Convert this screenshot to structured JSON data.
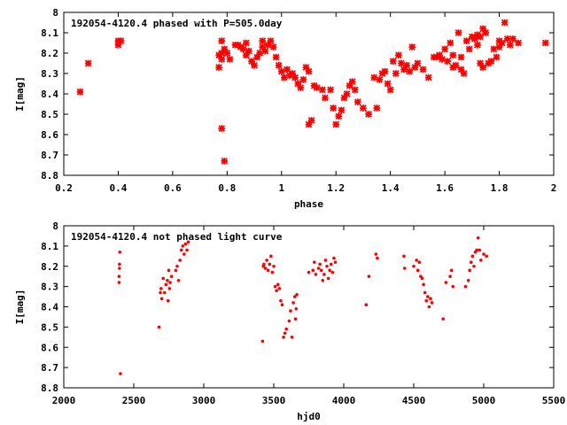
{
  "chart_data": [
    {
      "type": "scatter",
      "title": "192054-4120.4 phased with P=505.0day",
      "xlabel": "phase",
      "ylabel": "I[mag]",
      "xlim": [
        0.2,
        2.0
      ],
      "ylim": [
        8.8,
        8.0
      ],
      "y_inverted": true,
      "grid": false,
      "x_ticks": [
        "0.2",
        "0.4",
        "0.6",
        "0.8",
        "1",
        "1.2",
        "1.4",
        "1.6",
        "1.8",
        "2"
      ],
      "y_ticks": [
        "8",
        "8.1",
        "8.2",
        "8.3",
        "8.4",
        "8.5",
        "8.6",
        "8.7",
        "8.8"
      ],
      "marker_color": "#ff0000",
      "points": [
        [
          0.26,
          8.39
        ],
        [
          0.29,
          8.25
        ],
        [
          0.4,
          8.14
        ],
        [
          0.41,
          8.14
        ],
        [
          0.4,
          8.16
        ],
        [
          0.77,
          8.21
        ],
        [
          0.77,
          8.27
        ],
        [
          0.78,
          8.2
        ],
        [
          0.78,
          8.14
        ],
        [
          0.78,
          8.57
        ],
        [
          0.79,
          8.73
        ],
        [
          0.78,
          8.23
        ],
        [
          0.79,
          8.18
        ],
        [
          0.8,
          8.2
        ],
        [
          0.81,
          8.23
        ],
        [
          0.83,
          8.16
        ],
        [
          0.84,
          8.16
        ],
        [
          0.85,
          8.17
        ],
        [
          0.86,
          8.18
        ],
        [
          0.87,
          8.15
        ],
        [
          0.87,
          8.21
        ],
        [
          0.88,
          8.19
        ],
        [
          0.89,
          8.24
        ],
        [
          0.9,
          8.26
        ],
        [
          0.91,
          8.22
        ],
        [
          0.92,
          8.2
        ],
        [
          0.93,
          8.17
        ],
        [
          0.93,
          8.14
        ],
        [
          0.94,
          8.19
        ],
        [
          0.95,
          8.16
        ],
        [
          0.96,
          8.14
        ],
        [
          0.97,
          8.17
        ],
        [
          0.98,
          8.22
        ],
        [
          0.99,
          8.26
        ],
        [
          1.0,
          8.29
        ],
        [
          1.01,
          8.32
        ],
        [
          1.02,
          8.28
        ],
        [
          1.03,
          8.31
        ],
        [
          1.04,
          8.3
        ],
        [
          1.05,
          8.32
        ],
        [
          1.06,
          8.35
        ],
        [
          1.07,
          8.37
        ],
        [
          1.08,
          8.33
        ],
        [
          1.09,
          8.27
        ],
        [
          1.1,
          8.29
        ],
        [
          1.1,
          8.55
        ],
        [
          1.11,
          8.53
        ],
        [
          1.12,
          8.36
        ],
        [
          1.13,
          8.37
        ],
        [
          1.15,
          8.38
        ],
        [
          1.16,
          8.42
        ],
        [
          1.18,
          8.38
        ],
        [
          1.19,
          8.47
        ],
        [
          1.2,
          8.55
        ],
        [
          1.21,
          8.51
        ],
        [
          1.22,
          8.48
        ],
        [
          1.23,
          8.42
        ],
        [
          1.24,
          8.4
        ],
        [
          1.25,
          8.36
        ],
        [
          1.26,
          8.34
        ],
        [
          1.27,
          8.38
        ],
        [
          1.28,
          8.44
        ],
        [
          1.3,
          8.47
        ],
        [
          1.32,
          8.5
        ],
        [
          1.34,
          8.32
        ],
        [
          1.35,
          8.47
        ],
        [
          1.36,
          8.33
        ],
        [
          1.37,
          8.3
        ],
        [
          1.38,
          8.29
        ],
        [
          1.39,
          8.35
        ],
        [
          1.4,
          8.38
        ],
        [
          1.41,
          8.24
        ],
        [
          1.42,
          8.3
        ],
        [
          1.43,
          8.21
        ],
        [
          1.44,
          8.25
        ],
        [
          1.45,
          8.28
        ],
        [
          1.46,
          8.26
        ],
        [
          1.47,
          8.29
        ],
        [
          1.48,
          8.17
        ],
        [
          1.49,
          8.27
        ],
        [
          1.5,
          8.25
        ],
        [
          1.52,
          8.28
        ],
        [
          1.54,
          8.32
        ],
        [
          1.56,
          8.22
        ],
        [
          1.57,
          8.22
        ],
        [
          1.58,
          8.21
        ],
        [
          1.59,
          8.23
        ],
        [
          1.6,
          8.18
        ],
        [
          1.61,
          8.24
        ],
        [
          1.62,
          8.15
        ],
        [
          1.63,
          8.21
        ],
        [
          1.63,
          8.27
        ],
        [
          1.64,
          8.26
        ],
        [
          1.65,
          8.1
        ],
        [
          1.66,
          8.22
        ],
        [
          1.66,
          8.28
        ],
        [
          1.67,
          8.3
        ],
        [
          1.68,
          8.14
        ],
        [
          1.69,
          8.18
        ],
        [
          1.7,
          8.12
        ],
        [
          1.71,
          8.13
        ],
        [
          1.72,
          8.11
        ],
        [
          1.72,
          8.16
        ],
        [
          1.73,
          8.25
        ],
        [
          1.73,
          8.12
        ],
        [
          1.74,
          8.27
        ],
        [
          1.74,
          8.08
        ],
        [
          1.75,
          8.1
        ],
        [
          1.76,
          8.25
        ],
        [
          1.77,
          8.24
        ],
        [
          1.78,
          8.18
        ],
        [
          1.79,
          8.22
        ],
        [
          1.8,
          8.14
        ],
        [
          1.8,
          8.17
        ],
        [
          1.81,
          8.15
        ],
        [
          1.82,
          8.05
        ],
        [
          1.83,
          8.13
        ],
        [
          1.84,
          8.16
        ],
        [
          1.85,
          8.13
        ],
        [
          1.87,
          8.15
        ],
        [
          1.97,
          8.15
        ]
      ]
    },
    {
      "type": "scatter",
      "title": "192054-4120.4 not phased light curve",
      "xlabel": "hjd0",
      "ylabel": "I[mag]",
      "xlim": [
        2000,
        5500
      ],
      "ylim": [
        8.8,
        8.0
      ],
      "y_inverted": true,
      "grid": false,
      "x_ticks": [
        "2000",
        "2500",
        "3000",
        "3500",
        "4000",
        "4500",
        "5000",
        "5500"
      ],
      "y_ticks": [
        "8",
        "8.1",
        "8.2",
        "8.3",
        "8.4",
        "8.5",
        "8.6",
        "8.7",
        "8.8"
      ],
      "marker_color": "#ff0000",
      "points": [
        [
          2395,
          8.28
        ],
        [
          2395,
          8.25
        ],
        [
          2398,
          8.21
        ],
        [
          2398,
          8.19
        ],
        [
          2400,
          8.13
        ],
        [
          2405,
          8.73
        ],
        [
          2680,
          8.5
        ],
        [
          2690,
          8.33
        ],
        [
          2695,
          8.31
        ],
        [
          2700,
          8.36
        ],
        [
          2710,
          8.26
        ],
        [
          2720,
          8.33
        ],
        [
          2730,
          8.29
        ],
        [
          2740,
          8.27
        ],
        [
          2745,
          8.37
        ],
        [
          2750,
          8.22
        ],
        [
          2755,
          8.31
        ],
        [
          2760,
          8.28
        ],
        [
          2770,
          8.25
        ],
        [
          2800,
          8.22
        ],
        [
          2810,
          8.2
        ],
        [
          2820,
          8.27
        ],
        [
          2830,
          8.17
        ],
        [
          2840,
          8.12
        ],
        [
          2850,
          8.1
        ],
        [
          2860,
          8.14
        ],
        [
          2870,
          8.09
        ],
        [
          2880,
          8.12
        ],
        [
          2890,
          8.08
        ],
        [
          3420,
          8.57
        ],
        [
          3425,
          8.2
        ],
        [
          3430,
          8.19
        ],
        [
          3440,
          8.21
        ],
        [
          3450,
          8.17
        ],
        [
          3460,
          8.22
        ],
        [
          3470,
          8.19
        ],
        [
          3480,
          8.15
        ],
        [
          3490,
          8.23
        ],
        [
          3500,
          8.2
        ],
        [
          3510,
          8.3
        ],
        [
          3520,
          8.32
        ],
        [
          3530,
          8.29
        ],
        [
          3540,
          8.31
        ],
        [
          3550,
          8.37
        ],
        [
          3560,
          8.39
        ],
        [
          3570,
          8.55
        ],
        [
          3580,
          8.53
        ],
        [
          3590,
          8.51
        ],
        [
          3610,
          8.47
        ],
        [
          3620,
          8.42
        ],
        [
          3630,
          8.55
        ],
        [
          3640,
          8.38
        ],
        [
          3650,
          8.35
        ],
        [
          3655,
          8.46
        ],
        [
          3660,
          8.41
        ],
        [
          3665,
          8.34
        ],
        [
          3750,
          8.23
        ],
        [
          3780,
          8.22
        ],
        [
          3790,
          8.18
        ],
        [
          3800,
          8.24
        ],
        [
          3820,
          8.21
        ],
        [
          3830,
          8.19
        ],
        [
          3840,
          8.22
        ],
        [
          3850,
          8.27
        ],
        [
          3860,
          8.24
        ],
        [
          3870,
          8.17
        ],
        [
          3880,
          8.2
        ],
        [
          3890,
          8.26
        ],
        [
          3900,
          8.22
        ],
        [
          3910,
          8.19
        ],
        [
          3920,
          8.23
        ],
        [
          3930,
          8.16
        ],
        [
          3940,
          8.18
        ],
        [
          4160,
          8.39
        ],
        [
          4180,
          8.25
        ],
        [
          4230,
          8.14
        ],
        [
          4240,
          8.16
        ],
        [
          4430,
          8.15
        ],
        [
          4435,
          8.21
        ],
        [
          4500,
          8.2
        ],
        [
          4520,
          8.17
        ],
        [
          4530,
          8.22
        ],
        [
          4540,
          8.18
        ],
        [
          4550,
          8.25
        ],
        [
          4560,
          8.26
        ],
        [
          4570,
          8.29
        ],
        [
          4580,
          8.33
        ],
        [
          4590,
          8.37
        ],
        [
          4600,
          8.35
        ],
        [
          4610,
          8.4
        ],
        [
          4620,
          8.36
        ],
        [
          4630,
          8.38
        ],
        [
          4710,
          8.46
        ],
        [
          4730,
          8.28
        ],
        [
          4760,
          8.25
        ],
        [
          4770,
          8.22
        ],
        [
          4780,
          8.3
        ],
        [
          4870,
          8.3
        ],
        [
          4890,
          8.27
        ],
        [
          4900,
          8.22
        ],
        [
          4910,
          8.18
        ],
        [
          4920,
          8.15
        ],
        [
          4930,
          8.2
        ],
        [
          4940,
          8.13
        ],
        [
          4950,
          8.12
        ],
        [
          4960,
          8.06
        ],
        [
          4970,
          8.12
        ],
        [
          4980,
          8.17
        ],
        [
          5000,
          8.14
        ],
        [
          5020,
          8.15
        ]
      ]
    }
  ]
}
